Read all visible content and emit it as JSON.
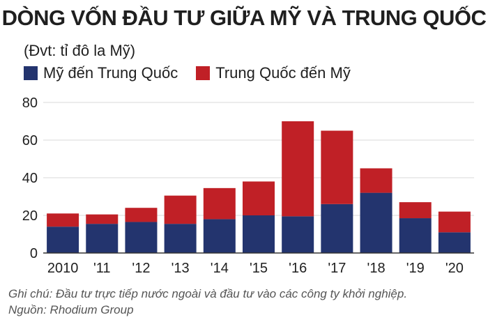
{
  "title": "DÒNG VỐN ĐẦU TƯ GIỮA MỸ VÀ TRUNG QUỐC",
  "unit": "(Đvt: tỉ đô la Mỹ)",
  "colors": {
    "us_to_china": "#23346e",
    "china_to_us": "#c02026"
  },
  "chart_data": {
    "type": "bar",
    "stacked": true,
    "categories": [
      "2010",
      "'11",
      "'12",
      "'13",
      "'14",
      "'15",
      "'16",
      "'17",
      "'18",
      "'19",
      "'20"
    ],
    "series": [
      {
        "name": "Mỹ đến Trung Quốc",
        "values": [
          14,
          15.5,
          16.5,
          15.5,
          18,
          20,
          19.5,
          26,
          32,
          18.5,
          11
        ]
      },
      {
        "name": "Trung Quốc đến Mỹ",
        "values": [
          7,
          5,
          7.5,
          15,
          16.5,
          18,
          50.5,
          39,
          13,
          8.5,
          11
        ]
      }
    ],
    "yticks": [
      "0",
      "20",
      "40",
      "60",
      "80"
    ],
    "ylim": [
      0,
      80
    ],
    "grid": true,
    "legend": "top-left"
  },
  "notes": {
    "note": "Ghi chú: Đầu tư trực tiếp nước ngoài và đầu tư vào các công ty khởi nghiệp.",
    "source": "Nguồn: Rhodium Group"
  }
}
